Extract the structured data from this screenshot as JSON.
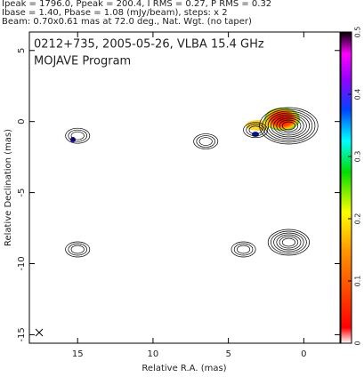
{
  "chart_data": {
    "type": "contour",
    "header": [
      "Ipeak = 1796.0, Ppeak = 200.4, I RMS = 0.27, P RMS = 0.32",
      "Ibase = 1.40, Pbase = 1.08 (mJy/beam), steps: x 2",
      "Beam: 0.70x0.61 mas at 72.0 deg., Nat. Wgt. (no taper)"
    ],
    "title": "0212+735, 2005-05-26, VLBA 15.4 GHz",
    "subtitle": "MOJAVE Program",
    "xlabel": "Relative R.A. (mas)",
    "ylabel": "Relative Declination (mas)",
    "xlim": [
      18.2,
      -2.4
    ],
    "xticks": [
      15,
      10,
      5,
      0
    ],
    "ylim": [
      -15.6,
      6.3
    ],
    "yticks": [
      5,
      0,
      -5,
      -10,
      -15
    ],
    "clim": [
      0,
      0.5
    ],
    "cticks": [
      0,
      0.1,
      0.2,
      0.3,
      0.4,
      0.5
    ],
    "components": [
      {
        "x": 1.0,
        "y": -0.3
      },
      {
        "x": 3.2,
        "y": -0.6
      },
      {
        "x": 6.5,
        "y": -1.4
      },
      {
        "x": 15.0,
        "y": -1.0
      },
      {
        "x": 1.0,
        "y": -8.5
      },
      {
        "x": 4.0,
        "y": -9.0
      },
      {
        "x": 15.0,
        "y": -9.0
      }
    ]
  }
}
